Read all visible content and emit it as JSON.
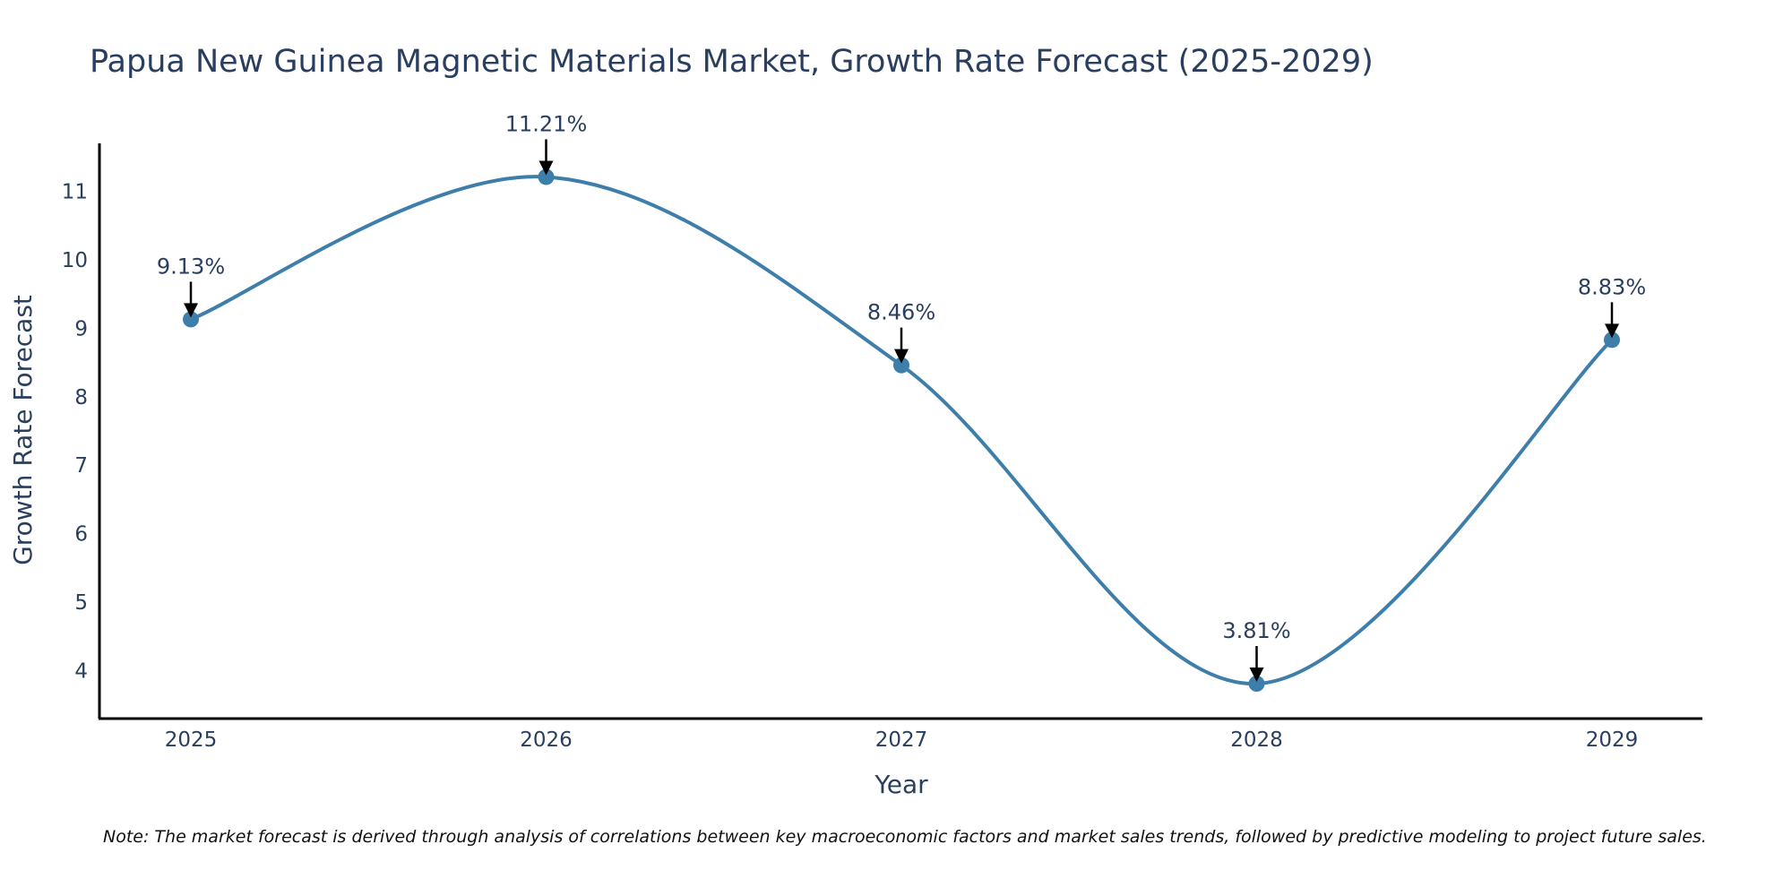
{
  "colors": {
    "line": "#3d7eaa",
    "marker": "#3d7eaa",
    "axis": "#000000",
    "arrow": "#000000",
    "text": "#2a3f5f"
  },
  "chart_data": {
    "type": "line",
    "title": "Papua New Guinea Magnetic Materials Market, Growth Rate Forecast (2025-2029)",
    "xlabel": "Year",
    "ylabel": "Growth Rate Forecast",
    "categories": [
      "2025",
      "2026",
      "2027",
      "2028",
      "2029"
    ],
    "series": [
      {
        "name": "Growth Rate Forecast",
        "values": [
          9.13,
          11.21,
          8.46,
          3.81,
          8.83
        ]
      }
    ],
    "data_labels": [
      "9.13%",
      "11.21%",
      "8.46%",
      "3.81%",
      "8.83%"
    ],
    "y_ticks": [
      4,
      5,
      6,
      7,
      8,
      9,
      10,
      11
    ],
    "ylim": [
      3.3,
      11.7
    ],
    "grid": false,
    "line_shape": "spline",
    "note": "Note: The market forecast is derived through analysis of correlations between key macroeconomic factors and market sales trends, followed by predictive modeling to project future sales."
  }
}
